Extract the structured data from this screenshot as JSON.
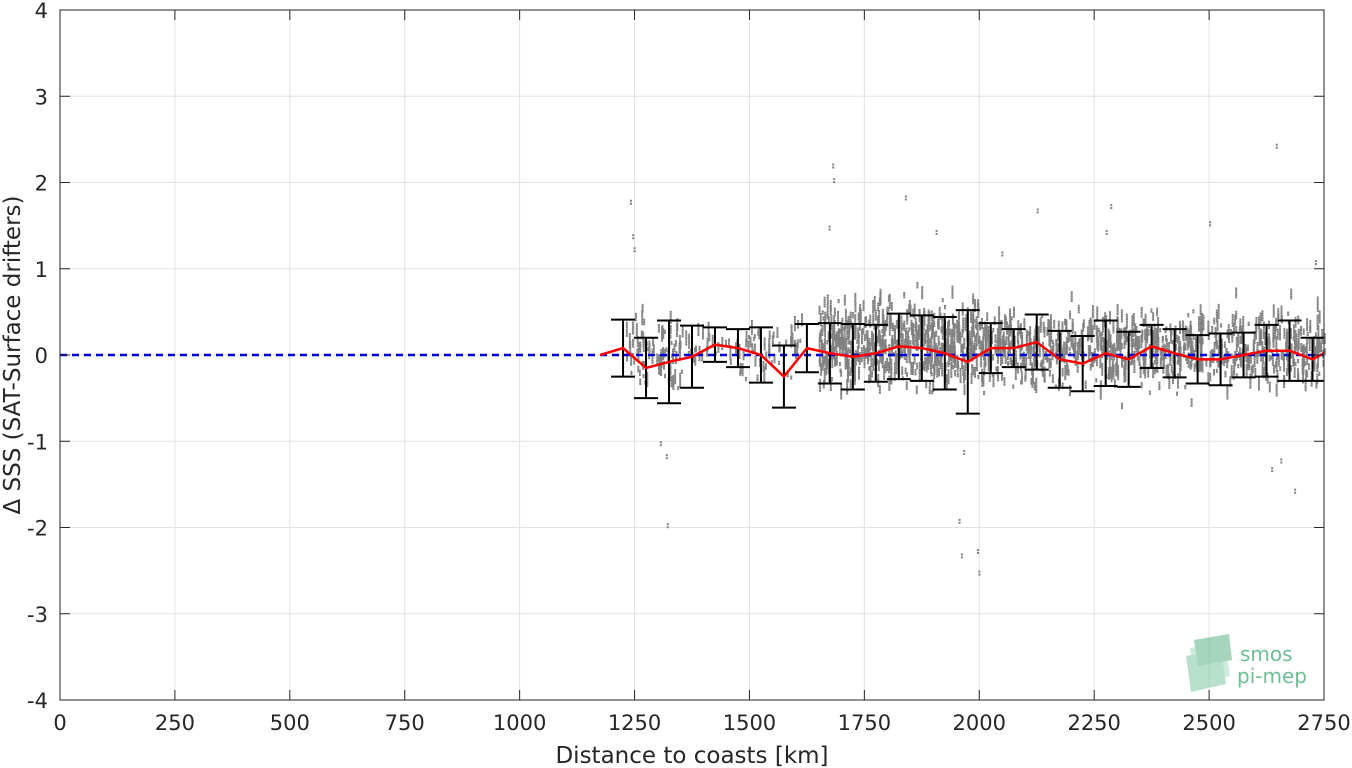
{
  "chart_data": {
    "type": "scatter",
    "xlabel": "Distance to coasts [km]",
    "ylabel": "Δ SSS (SAT-Surface drifters)",
    "xlim": [
      0,
      2750
    ],
    "ylim": [
      -4,
      4
    ],
    "xticks": [
      "0",
      "250",
      "500",
      "750",
      "1000",
      "1250",
      "1500",
      "1750",
      "2000",
      "2250",
      "2500",
      "2750"
    ],
    "yticks": [
      "-4",
      "-3",
      "-2",
      "-1",
      "0",
      "1",
      "2",
      "3",
      "4"
    ],
    "grid": true,
    "reference_line": {
      "y": 0,
      "color": "#0000dd",
      "style": "dashed",
      "x_range": [
        0,
        2750
      ]
    },
    "scatter_color": "#808080",
    "mean_line_color": "#ff0000",
    "errorbar_color": "#000000",
    "mean_with_std": {
      "x": [
        1175,
        1225,
        1275,
        1325,
        1375,
        1425,
        1475,
        1525,
        1575,
        1625,
        1675,
        1725,
        1775,
        1825,
        1875,
        1925,
        1975,
        2025,
        2075,
        2125,
        2175,
        2225,
        2275,
        2325,
        2375,
        2425,
        2475,
        2525,
        2575,
        2625,
        2675,
        2725,
        2750
      ],
      "mean": [
        0.0,
        0.08,
        -0.15,
        -0.08,
        -0.02,
        0.12,
        0.08,
        0.0,
        -0.25,
        0.08,
        0.02,
        -0.02,
        0.02,
        0.1,
        0.08,
        0.02,
        -0.08,
        0.08,
        0.08,
        0.15,
        -0.05,
        -0.1,
        0.02,
        -0.05,
        0.1,
        0.02,
        -0.05,
        -0.05,
        0.0,
        0.05,
        0.05,
        -0.05,
        0.02
      ],
      "std": [
        0.0,
        0.33,
        0.35,
        0.48,
        0.36,
        0.2,
        0.22,
        0.32,
        0.36,
        0.28,
        0.35,
        0.38,
        0.33,
        0.38,
        0.38,
        0.42,
        0.6,
        0.29,
        0.22,
        0.32,
        0.33,
        0.32,
        0.38,
        0.32,
        0.25,
        0.28,
        0.28,
        0.3,
        0.26,
        0.3,
        0.35,
        0.25,
        0.0
      ]
    },
    "scatter_clusters": [
      {
        "x_range": [
          1230,
          1350
        ],
        "y_mean": 0.0,
        "y_spread": 0.35,
        "count": 90
      },
      {
        "x_range": [
          1350,
          1620
        ],
        "y_mean": 0.05,
        "y_spread": 0.25,
        "count": 90
      },
      {
        "x_range": [
          1650,
          2000
        ],
        "y_mean": 0.1,
        "y_spread": 0.4,
        "count": 650
      },
      {
        "x_range": [
          2000,
          2750
        ],
        "y_mean": 0.05,
        "y_spread": 0.35,
        "count": 900
      }
    ],
    "scatter_outliers": [
      {
        "x": 1245,
        "y": 1.4
      },
      {
        "x": 1248,
        "y": 1.25
      },
      {
        "x": 1240,
        "y": 1.8
      },
      {
        "x": 1320,
        "y": -1.95
      },
      {
        "x": 1318,
        "y": -1.15
      },
      {
        "x": 1305,
        "y": -1.0
      },
      {
        "x": 1680,
        "y": 2.22
      },
      {
        "x": 1682,
        "y": 2.05
      },
      {
        "x": 1672,
        "y": 1.5
      },
      {
        "x": 1838,
        "y": 1.85
      },
      {
        "x": 1955,
        "y": -1.9
      },
      {
        "x": 1960,
        "y": -2.3
      },
      {
        "x": 1995,
        "y": -2.25
      },
      {
        "x": 1998,
        "y": -2.5
      },
      {
        "x": 2125,
        "y": 1.7
      },
      {
        "x": 2275,
        "y": 1.45
      },
      {
        "x": 2285,
        "y": 1.75
      },
      {
        "x": 2500,
        "y": 1.55
      },
      {
        "x": 2645,
        "y": 2.45
      },
      {
        "x": 2635,
        "y": -1.3
      },
      {
        "x": 2655,
        "y": -1.2
      },
      {
        "x": 2685,
        "y": -1.55
      },
      {
        "x": 2730,
        "y": 1.1
      },
      {
        "x": 1965,
        "y": -1.1
      },
      {
        "x": 2048,
        "y": 1.2
      },
      {
        "x": 1905,
        "y": 1.45
      }
    ]
  },
  "logo": {
    "line1": "smos",
    "line2": "pi-mep",
    "color": "#6dbf95"
  }
}
